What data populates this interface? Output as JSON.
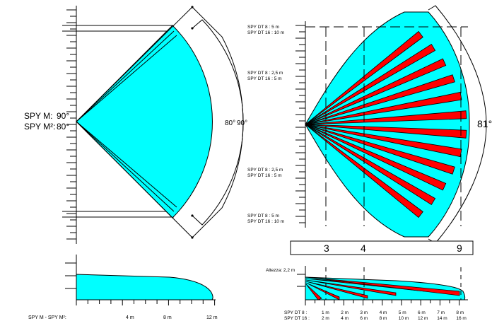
{
  "left_diagram": {
    "spy_m_label": "SPY M:",
    "spy_m_angle": "90°",
    "spy_m2_label": "SPY M²:",
    "spy_m2_angle": "80°",
    "arc_label_80": "80°",
    "arc_label_90": "90°",
    "range_prefix": "SPY  M - SPY M²:",
    "range_ticks": [
      "4 m",
      "8 m",
      "12 m"
    ]
  },
  "right_diagram": {
    "angle_label": "81°",
    "distance_labels": [
      {
        "line1": "SPY DT    8 : 5 m",
        "line2": "SPY DT 16 : 10 m"
      },
      {
        "line1": "SPY DT    8 : 2,5 m",
        "line2": "SPY DT 16 : 5 m"
      },
      {
        "line1": "SPY DT    8 : 2,5 m",
        "line2": "SPY DT 16 :  5 m"
      },
      {
        "line1": "SPY DT    8 : 5 m",
        "line2": "SPY DT 16 : 10 m"
      }
    ],
    "zone_box_numbers": [
      "3",
      "4",
      "9"
    ],
    "altezza_label": "Altezza: 2,2 m",
    "bottom_row1_prefix": "SPY DT  8 :",
    "bottom_row2_prefix": "SPY DT 16 :",
    "bottom_row1": [
      "1 m",
      "2 m",
      "3 m",
      "4 m",
      "5 m",
      "6 m",
      "7 m",
      "8 m"
    ],
    "bottom_row2": [
      "2 m",
      "4 m",
      "6 m",
      "8 m",
      "10 m",
      "12 m",
      "14 m",
      "16 m"
    ]
  },
  "colors": {
    "coverage_fill": "#00ffff",
    "beam_fill": "#ff0000",
    "line": "#000000"
  }
}
